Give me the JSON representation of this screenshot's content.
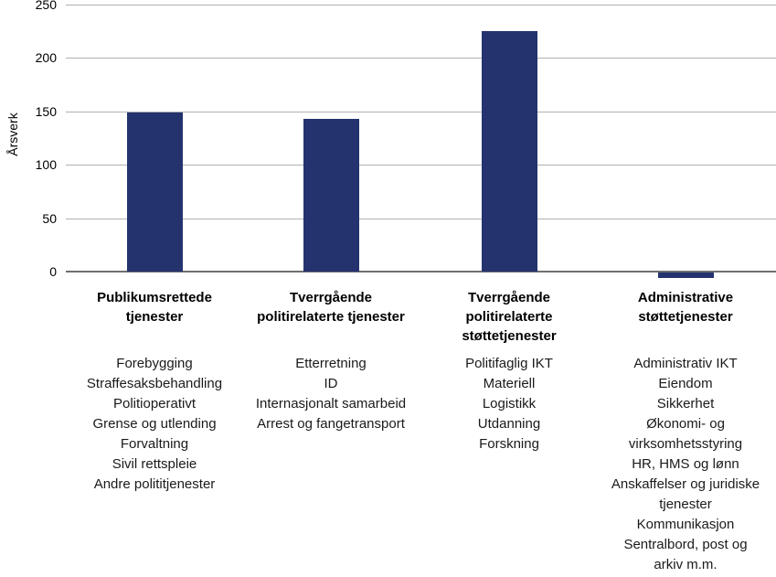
{
  "chart_data": {
    "type": "bar",
    "title": "",
    "ylabel": "Årsverk",
    "xlabel": "",
    "ylim": [
      0,
      250
    ],
    "yticks": [
      0,
      50,
      100,
      150,
      200,
      250
    ],
    "grid": "horizontal",
    "legend": "none",
    "bar_color": "#24336e",
    "gridline_color": "#b1b1b1",
    "zero_line_color": "#6f6f6f",
    "categories": [
      {
        "header": "Publikumsrettede\ntjenester",
        "value": 149,
        "items": [
          "Forebygging",
          "Straffesaksbehandling",
          "Politioperativt",
          "Grense og utlending",
          "Forvaltning",
          "Sivil rettspleie",
          "Andre polititjenester"
        ]
      },
      {
        "header": "Tverrgående\npolitirelaterte tjenester",
        "value": 143,
        "items": [
          "Etterretning",
          "ID",
          "Internasjonalt samarbeid",
          "Arrest og fangetransport"
        ]
      },
      {
        "header": "Tverrgående\npolitirelaterte\nstøttetjenester",
        "value": 225,
        "items": [
          "Politifaglig IKT",
          "Materiell",
          "Logistikk",
          "Utdanning",
          "Forskning"
        ]
      },
      {
        "header": "Administrative\nstøttetjenester",
        "value": -5,
        "items": [
          "Administrativ IKT",
          "Eiendom",
          "Sikkerhet",
          "Økonomi- og virksomhetsstyring",
          "HR, HMS og lønn",
          "Anskaffelser og juridiske tjenester",
          "Kommunikasjon",
          "Sentralbord, post og arkiv m.m."
        ]
      }
    ]
  }
}
